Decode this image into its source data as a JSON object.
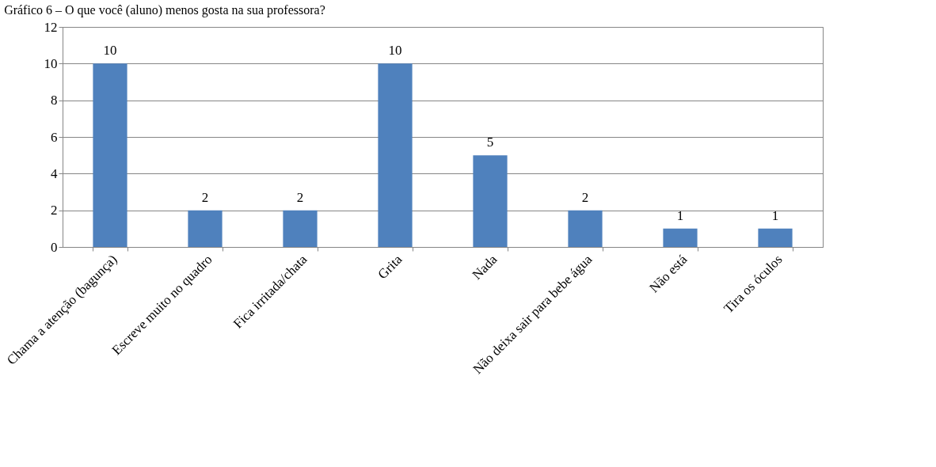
{
  "chart_data": {
    "type": "bar",
    "title": "Gráfico 6 – O que você (aluno) menos gosta na sua professora?",
    "categories": [
      "Chama a atenção (bagunça)",
      "Escreve muito no quadro",
      "Fica irritada/chata",
      "Grita",
      "Nada",
      "Não deixa sair para bebe água",
      "Não está",
      "Tira os óculos"
    ],
    "values": [
      10,
      2,
      2,
      10,
      5,
      2,
      1,
      1
    ],
    "color": "#4f81bd",
    "ylim": [
      0,
      12
    ],
    "yticks": [
      0,
      2,
      4,
      6,
      8,
      10,
      12
    ],
    "grid": "y",
    "data_labels": true
  }
}
